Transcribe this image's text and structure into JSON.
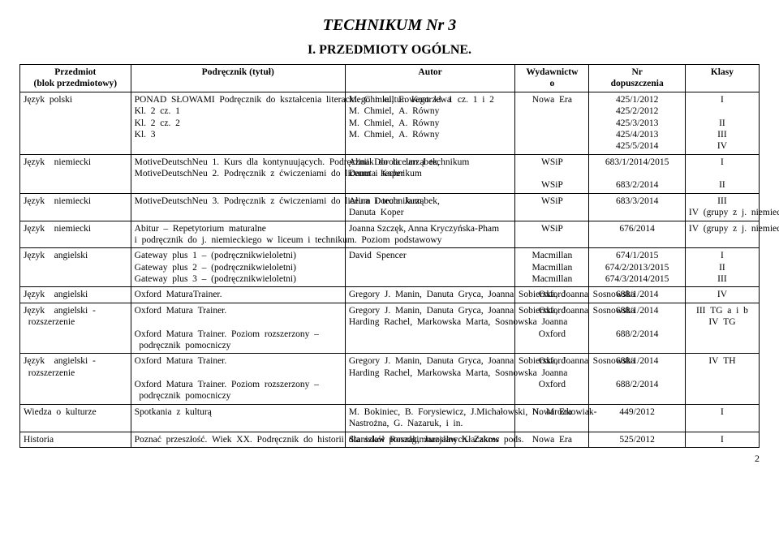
{
  "title": "TECHNIKUM Nr 3",
  "section": "I. PRZEDMIOTY OGÓLNE.",
  "page_number": "2",
  "headers": {
    "col1a": "Przedmiot",
    "col1b": "(blok przedmiotowy)",
    "col2": "Podręcznik (tytuł)",
    "col3": "Autor",
    "col4a": "Wydawnictw",
    "col4b": "o",
    "col5a": "Nr",
    "col5b": "dopuszczenia",
    "col6": "Klasy"
  },
  "rows": [
    {
      "subject": "Język polski",
      "book": "PONAD SŁOWAMI Podręcznik do kształcenia literackiego i kulturowego kl. 1 cz. 1 i 2\nKl. 2 cz. 1\nKl. 2 cz. 2\nKl. 3",
      "author": "M. Chmiel, E. Kostrzewa\nM. Chmiel, A. Równy\nM. Chmiel, A. Równy\nM. Chmiel, A. Równy",
      "pub": "Nowa Era",
      "num": "425/1/2012\n425/2/2012\n425/3/2013\n425/4/2013\n425/5/2014",
      "klasy": "I\n\nII\nIII\nIV"
    },
    {
      "subject": "Język  niemiecki",
      "book": "MotiveDeutschNeu 1. Kurs dla kontynuujących. Podręczniik do liceum i technikum\nMotiveDeutschNeu 2. Podręcznik z ćwiczeniami do liceum i technikum",
      "author": "Alina Dorota Jarząbek,\nDanuta Koper",
      "pub": "WSiP\n\nWSiP",
      "num": "683/1/2014/2015\n\n683/2/2014",
      "klasy": "I\n\nII"
    },
    {
      "subject": "Język  niemiecki",
      "book": "MotiveDeutschNeu 3. Podręcznik z ćwiczeniami do liceum i technikum",
      "author": "Alina Dorota Jarząbek,\nDanuta Koper",
      "pub": "WSiP",
      "num": "683/3/2014",
      "klasy": "III\nIV (grupy z j. niemieckim jako drugim jęz. obcym)"
    },
    {
      "subject": "Język  niemiecki",
      "book": "Abitur – Repetytorium maturalne\ni podręcznik do j. niemieckiego w liceum i technikum. Poziom podstawowy",
      "author_html": "<span class=\"fakelink\">Joanna Szczęk</span>, <span class=\"fakelink\">Anna Kryczyńska-Pham</span>",
      "pub": "WSiP",
      "num": "676/2014",
      "klasy": "IV (grupy z j. niemieckim wiodącym)"
    },
    {
      "subject": "Język  angielski",
      "book": "Gateway plus 1 – (podręcznikwieloletni)\nGateway plus 2 – (podręcznikwieloletni)\nGateway plus 3 – (podręcznikwieloletni)",
      "author": "David Spencer",
      "pub": "Macmillan\nMacmillan\nMacmillan",
      "num": "674/1/2015\n674/2/2013/2015\n674/3/2014/2015",
      "klasy": "I\nII\nIII"
    },
    {
      "subject": "Język  angielski",
      "book": "Oxford MaturaTrainer.",
      "author": "Gregory J. Manin, Danuta Gryca, Joanna Sobierska, Joanna Sosnowska",
      "pub": "Oxford",
      "num": "688/1/2014",
      "klasy": "IV"
    },
    {
      "subject": "Język  angielski - rozszerzenie",
      "book": "Oxford Matura Trainer.\n\nOxford Matura Trainer. Poziom rozszerzony – podręcznik pomocniczy",
      "author": "Gregory J. Manin, Danuta Gryca, Joanna Sobierska, Joanna Sosnowska\nHarding Rachel, Markowska Marta, Sosnowska Joanna",
      "pub": "Oxford\n\nOxford",
      "num": "688/1/2014\n\n688/2/2014",
      "klasy": "III TG a i b\nIV TG"
    },
    {
      "subject": "Język  angielski - rozszerzenie",
      "book": "Oxford Matura Trainer.\n\nOxford Matura Trainer. Poziom rozszerzony – podręcznik pomocniczy",
      "author": "Gregory J. Manin, Danuta Gryca, Joanna Sobierska, Joanna Sosnowska\nHarding Rachel, Markowska Marta, Sosnowska Joanna",
      "pub": "Oxford\n\nOxford",
      "num": "688/1/2014\n\n688/2/2014",
      "klasy": "IV TH"
    },
    {
      "subject": "Wiedza o kulturze",
      "book": "Spotkania z kulturą",
      "author": "M. Bokiniec, B. Forysiewicz, J.Michałowski, N. Mrozkowiak-Nastrożna, G. Nazaruk, i in.",
      "pub": "Nowa Era",
      "num": "449/2012",
      "klasy": "I"
    },
    {
      "subject": "Historia",
      "book": "Poznać przeszłość. Wiek XX. Podręcznik do historii dla szkół ponadgimnazjalnych. Zakres pods.",
      "author": "Stanisław Roszak, Jarosław Kłaczkow",
      "pub": "Nowa Era",
      "num": "525/2012",
      "klasy": "I"
    }
  ]
}
